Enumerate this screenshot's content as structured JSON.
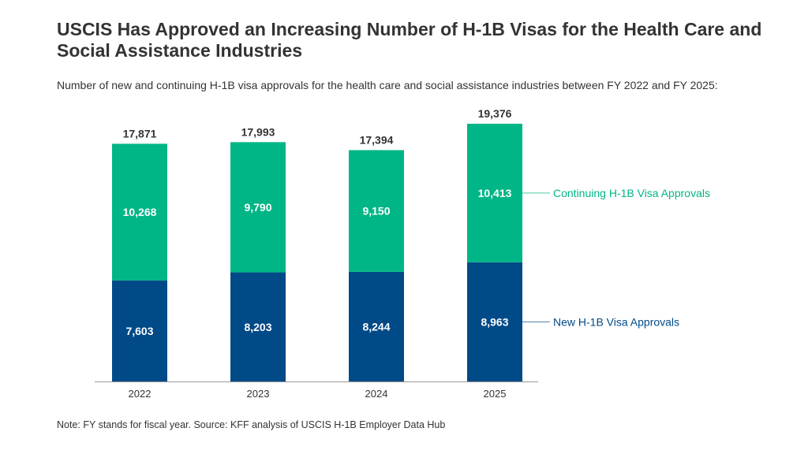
{
  "title": "USCIS Has Approved an Increasing Number of H-1B Visas for the Health Care and Social Assistance Industries",
  "subtitle": "Number of new and continuing H-1B visa approvals for the health care and social assistance industries between FY 2022 and FY 2025:",
  "note": "Note: FY stands for fiscal year. Source: KFF analysis of USCIS H-1B Employer Data Hub",
  "chart_data": {
    "type": "bar",
    "stacked": true,
    "categories": [
      "2022",
      "2023",
      "2024",
      "2025"
    ],
    "series": [
      {
        "name": "New H-1B Visa Approvals",
        "values": [
          7603,
          8203,
          8244,
          8963
        ],
        "labels": [
          "7,603",
          "8,203",
          "8,244",
          "8,963"
        ],
        "color": "#004a87"
      },
      {
        "name": "Continuing H-1B Visa Approvals",
        "values": [
          10268,
          9790,
          9150,
          10413
        ],
        "labels": [
          "10,268",
          "9,790",
          "9,150",
          "10,413"
        ],
        "color": "#00b686"
      }
    ],
    "totals": [
      17871,
      17993,
      17394,
      19376
    ],
    "total_labels": [
      "17,871",
      "17,993",
      "17,394",
      "19,376"
    ],
    "ylim": [
      0,
      19376
    ],
    "grid": false,
    "legend": "right, direct labels"
  }
}
